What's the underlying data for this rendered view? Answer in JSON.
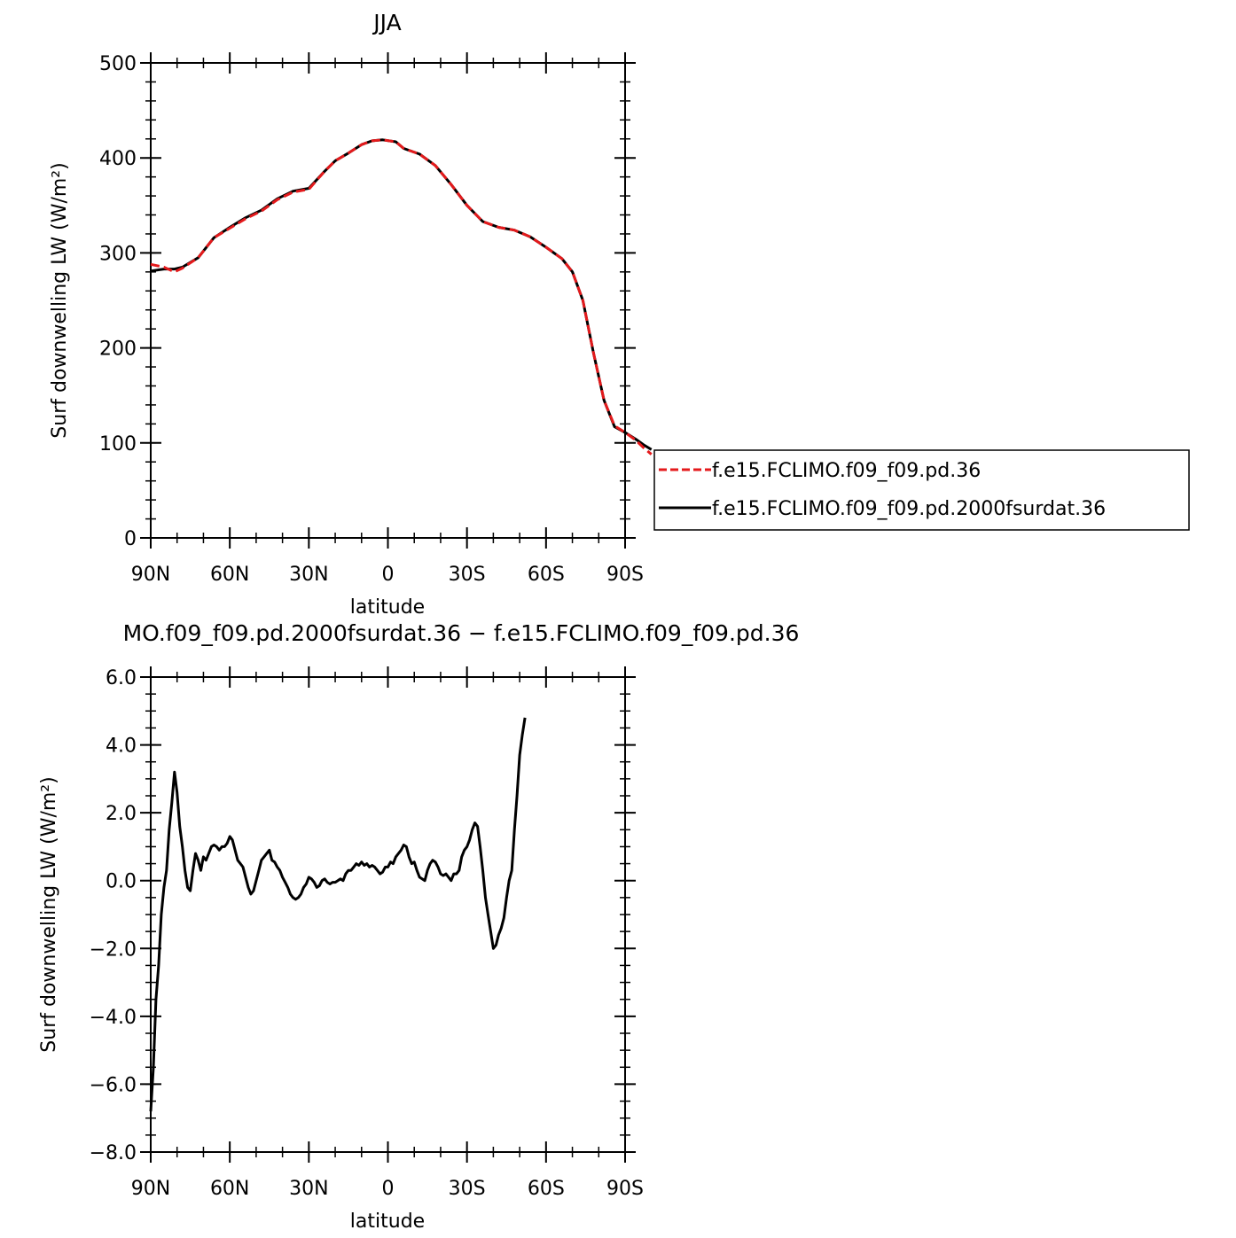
{
  "chart_data": [
    {
      "type": "line",
      "title": "JJA",
      "xlabel": "latitude",
      "ylabel": "Surf downwelling LW (W/m²)",
      "ylim": [
        0,
        500
      ],
      "yticks": [
        "0",
        "100",
        "200",
        "300",
        "400",
        "500"
      ],
      "xticks": [
        {
          "lat": 90,
          "label": "90N"
        },
        {
          "lat": 60,
          "label": "60N"
        },
        {
          "lat": 30,
          "label": "30N"
        },
        {
          "lat": 0,
          "label": "0"
        },
        {
          "lat": -30,
          "label": "30S"
        },
        {
          "lat": -60,
          "label": "60S"
        },
        {
          "lat": -90,
          "label": "90S"
        }
      ],
      "legend_position": "right",
      "series": [
        {
          "name": "f.e15.FCLIMO.f09_f09.pd.36",
          "color": "#e41a1c",
          "dash": "dashed",
          "points": [
            [
              90,
              288
            ],
            [
              85,
              285
            ],
            [
              81,
              280
            ],
            [
              78,
              284
            ],
            [
              72,
              295
            ],
            [
              66,
              316
            ],
            [
              60,
              326
            ],
            [
              54,
              336
            ],
            [
              48,
              344
            ],
            [
              42,
              356
            ],
            [
              36,
              364
            ],
            [
              30,
              367
            ],
            [
              24,
              386
            ],
            [
              20,
              397
            ],
            [
              15,
              405
            ],
            [
              10,
              414
            ],
            [
              6,
              418
            ],
            [
              2,
              419
            ],
            [
              -3,
              417
            ],
            [
              -6,
              410
            ],
            [
              -12,
              404
            ],
            [
              -18,
              392
            ],
            [
              -24,
              372
            ],
            [
              -30,
              350
            ],
            [
              -36,
              333
            ],
            [
              -42,
              327
            ],
            [
              -48,
              324
            ],
            [
              -54,
              317
            ],
            [
              -60,
              306
            ],
            [
              -66,
              294
            ],
            [
              -70,
              280
            ],
            [
              -74,
              250
            ],
            [
              -78,
              195
            ],
            [
              -82,
              145
            ],
            [
              -86,
              118
            ],
            [
              -90,
              111
            ],
            [
              -94,
              103
            ],
            [
              -97,
              95
            ],
            [
              -100,
              88
            ]
          ]
        },
        {
          "name": "f.e15.FCLIMO.f09_f09.pd.2000fsurdat.36",
          "color": "#000000",
          "dash": "solid",
          "points": [
            [
              90,
              281
            ],
            [
              85,
              283
            ],
            [
              81,
              283
            ],
            [
              78,
              285
            ],
            [
              72,
              295
            ],
            [
              66,
              316
            ],
            [
              60,
              327
            ],
            [
              54,
              337
            ],
            [
              48,
              345
            ],
            [
              42,
              357
            ],
            [
              36,
              365
            ],
            [
              30,
              368
            ],
            [
              24,
              386
            ],
            [
              20,
              397
            ],
            [
              15,
              405
            ],
            [
              10,
              414
            ],
            [
              6,
              418
            ],
            [
              2,
              419
            ],
            [
              -3,
              417
            ],
            [
              -6,
              410
            ],
            [
              -12,
              404
            ],
            [
              -18,
              392
            ],
            [
              -24,
              372
            ],
            [
              -30,
              350
            ],
            [
              -36,
              333
            ],
            [
              -42,
              327
            ],
            [
              -48,
              324
            ],
            [
              -54,
              317
            ],
            [
              -60,
              306
            ],
            [
              -66,
              294
            ],
            [
              -70,
              280
            ],
            [
              -74,
              250
            ],
            [
              -78,
              195
            ],
            [
              -82,
              145
            ],
            [
              -86,
              117
            ],
            [
              -90,
              111
            ],
            [
              -94,
              104
            ],
            [
              -97,
              98
            ],
            [
              -100,
              93
            ]
          ]
        }
      ]
    },
    {
      "type": "line",
      "title": "MO.f09_f09.pd.2000fsurdat.36 − f.e15.FCLIMO.f09_f09.pd.36",
      "xlabel": "latitude",
      "ylabel": "Surf downwelling LW (W/m²)",
      "ylim": [
        -8,
        6
      ],
      "yticks": [
        "−8.0",
        "−6.0",
        "−4.0",
        "−2.0",
        "0.0",
        "2.0",
        "4.0",
        "6.0"
      ],
      "xticks": [
        {
          "lat": 90,
          "label": "90N"
        },
        {
          "lat": 60,
          "label": "60N"
        },
        {
          "lat": 30,
          "label": "30N"
        },
        {
          "lat": 0,
          "label": "0"
        },
        {
          "lat": -30,
          "label": "30S"
        },
        {
          "lat": -60,
          "label": "60S"
        },
        {
          "lat": -90,
          "label": "90S"
        }
      ],
      "series": [
        {
          "color": "#000000",
          "points": [
            [
              90,
              -6.8
            ],
            [
              89,
              -5.5
            ],
            [
              88,
              -3.5
            ],
            [
              87,
              -2.5
            ],
            [
              86,
              -1.0
            ],
            [
              85,
              -0.2
            ],
            [
              84,
              0.3
            ],
            [
              83,
              1.5
            ],
            [
              82,
              2.3
            ],
            [
              81,
              3.2
            ],
            [
              80,
              2.6
            ],
            [
              79,
              1.6
            ],
            [
              78,
              1.0
            ],
            [
              77,
              0.3
            ],
            [
              76,
              -0.2
            ],
            [
              75,
              -0.3
            ],
            [
              74,
              0.3
            ],
            [
              73,
              0.8
            ],
            [
              72,
              0.6
            ],
            [
              71,
              0.3
            ],
            [
              70,
              0.7
            ],
            [
              69,
              0.6
            ],
            [
              68,
              0.8
            ],
            [
              67,
              1.0
            ],
            [
              66,
              1.05
            ],
            [
              65,
              1.0
            ],
            [
              64,
              0.9
            ],
            [
              63,
              1.0
            ],
            [
              62,
              1.0
            ],
            [
              61,
              1.1
            ],
            [
              60,
              1.3
            ],
            [
              59,
              1.2
            ],
            [
              58,
              0.9
            ],
            [
              57,
              0.6
            ],
            [
              56,
              0.5
            ],
            [
              55,
              0.4
            ],
            [
              54,
              0.1
            ],
            [
              53,
              -0.2
            ],
            [
              52,
              -0.4
            ],
            [
              51,
              -0.3
            ],
            [
              50,
              0.0
            ],
            [
              49,
              0.3
            ],
            [
              48,
              0.6
            ],
            [
              47,
              0.7
            ],
            [
              46,
              0.8
            ],
            [
              45,
              0.9
            ],
            [
              44,
              0.6
            ],
            [
              43,
              0.55
            ],
            [
              42,
              0.4
            ],
            [
              41,
              0.3
            ],
            [
              40,
              0.1
            ],
            [
              39,
              -0.05
            ],
            [
              38,
              -0.2
            ],
            [
              37,
              -0.4
            ],
            [
              36,
              -0.5
            ],
            [
              35,
              -0.55
            ],
            [
              34,
              -0.5
            ],
            [
              33,
              -0.4
            ],
            [
              32,
              -0.2
            ],
            [
              31,
              -0.1
            ],
            [
              30,
              0.1
            ],
            [
              29,
              0.05
            ],
            [
              28,
              -0.05
            ],
            [
              27,
              -0.2
            ],
            [
              26,
              -0.15
            ],
            [
              25,
              0.0
            ],
            [
              24,
              0.05
            ],
            [
              23,
              -0.05
            ],
            [
              22,
              -0.1
            ],
            [
              21,
              -0.05
            ],
            [
              20,
              -0.05
            ],
            [
              19,
              0.0
            ],
            [
              18,
              0.05
            ],
            [
              17,
              0.0
            ],
            [
              16,
              0.2
            ],
            [
              15,
              0.3
            ],
            [
              14,
              0.3
            ],
            [
              13,
              0.4
            ],
            [
              12,
              0.5
            ],
            [
              11,
              0.45
            ],
            [
              10,
              0.55
            ],
            [
              9,
              0.45
            ],
            [
              8,
              0.5
            ],
            [
              7,
              0.4
            ],
            [
              6,
              0.45
            ],
            [
              5,
              0.4
            ],
            [
              4,
              0.3
            ],
            [
              3,
              0.2
            ],
            [
              2,
              0.25
            ],
            [
              1,
              0.4
            ],
            [
              0,
              0.4
            ],
            [
              -1,
              0.55
            ],
            [
              -2,
              0.5
            ],
            [
              -3,
              0.7
            ],
            [
              -4,
              0.8
            ],
            [
              -5,
              0.9
            ],
            [
              -6,
              1.05
            ],
            [
              -7,
              1.0
            ],
            [
              -8,
              0.7
            ],
            [
              -9,
              0.5
            ],
            [
              -10,
              0.55
            ],
            [
              -11,
              0.3
            ],
            [
              -12,
              0.1
            ],
            [
              -13,
              0.05
            ],
            [
              -14,
              0.0
            ],
            [
              -15,
              0.3
            ],
            [
              -16,
              0.5
            ],
            [
              -17,
              0.6
            ],
            [
              -18,
              0.55
            ],
            [
              -19,
              0.4
            ],
            [
              -20,
              0.2
            ],
            [
              -21,
              0.15
            ],
            [
              -22,
              0.2
            ],
            [
              -23,
              0.1
            ],
            [
              -24,
              0.0
            ],
            [
              -25,
              0.2
            ],
            [
              -26,
              0.2
            ],
            [
              -27,
              0.3
            ],
            [
              -28,
              0.7
            ],
            [
              -29,
              0.9
            ],
            [
              -30,
              1.0
            ],
            [
              -31,
              1.2
            ],
            [
              -32,
              1.5
            ],
            [
              -33,
              1.7
            ],
            [
              -34,
              1.6
            ],
            [
              -35,
              1.0
            ],
            [
              -36,
              0.3
            ],
            [
              -37,
              -0.5
            ],
            [
              -38,
              -1.0
            ],
            [
              -39,
              -1.5
            ],
            [
              -40,
              -2.0
            ],
            [
              -41,
              -1.9
            ],
            [
              -42,
              -1.6
            ],
            [
              -43,
              -1.4
            ],
            [
              -44,
              -1.1
            ],
            [
              -45,
              -0.5
            ],
            [
              -46,
              0.0
            ],
            [
              -47,
              0.3
            ],
            [
              -48,
              1.5
            ],
            [
              -49,
              2.5
            ],
            [
              -50,
              3.7
            ],
            [
              -51,
              4.3
            ],
            [
              -52,
              4.8
            ]
          ]
        }
      ]
    }
  ],
  "legend": {
    "entries": [
      {
        "label": "f.e15.FCLIMO.f09_f09.pd.36",
        "color": "#e41a1c",
        "dash": "dashed"
      },
      {
        "label": "f.e15.FCLIMO.f09_f09.pd.2000fsurdat.36",
        "color": "#000000",
        "dash": "solid"
      }
    ]
  }
}
